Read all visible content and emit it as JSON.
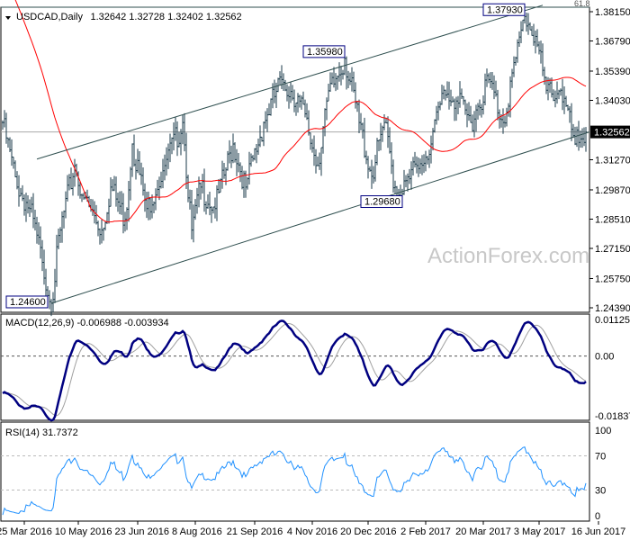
{
  "chart_data": {
    "type": "ohlc",
    "title": "USDCAD,Daily",
    "ohlc_last": [
      "1.32642",
      "1.32728",
      "1.32402",
      "1.32562"
    ],
    "last_price": "1.32562",
    "price_ticks": [
      "1.38150",
      "1.36790",
      "1.35390",
      "1.34030",
      "1.32562",
      "1.31270",
      "1.29870",
      "1.28510",
      "1.27150",
      "1.25750",
      "1.24390"
    ],
    "price_range": [
      1.2439,
      1.3815
    ],
    "date_labels": [
      [
        "25 Mar 2016",
        12
      ],
      [
        "10 May 2016",
        42
      ],
      [
        "23 Jun 2016",
        75
      ],
      [
        "8 Aug 2016",
        107
      ],
      [
        "21 Sep 2016",
        140
      ],
      [
        "4 Nov 2016",
        172
      ],
      [
        "20 Dec 2016",
        203
      ],
      [
        "2 Feb 2017",
        235
      ],
      [
        "20 Mar 2017",
        267
      ],
      [
        "3 May 2017",
        298
      ],
      [
        "16 Jun 2017",
        331
      ]
    ],
    "close_keyframes": [
      [
        0,
        1.33
      ],
      [
        8,
        1.3
      ],
      [
        15,
        1.29
      ],
      [
        22,
        1.265
      ],
      [
        27,
        1.246
      ],
      [
        32,
        1.28
      ],
      [
        40,
        1.31
      ],
      [
        45,
        1.295
      ],
      [
        55,
        1.28
      ],
      [
        60,
        1.3
      ],
      [
        68,
        1.285
      ],
      [
        72,
        1.32
      ],
      [
        80,
        1.29
      ],
      [
        90,
        1.31
      ],
      [
        100,
        1.33
      ],
      [
        105,
        1.28
      ],
      [
        110,
        1.3
      ],
      [
        118,
        1.29
      ],
      [
        128,
        1.32
      ],
      [
        135,
        1.3
      ],
      [
        145,
        1.33
      ],
      [
        155,
        1.35
      ],
      [
        165,
        1.34
      ],
      [
        175,
        1.31
      ],
      [
        180,
        1.34
      ],
      [
        190,
        1.3598
      ],
      [
        198,
        1.33
      ],
      [
        205,
        1.305
      ],
      [
        212,
        1.33
      ],
      [
        218,
        1.3
      ],
      [
        222,
        1.2968
      ],
      [
        230,
        1.31
      ],
      [
        238,
        1.32
      ],
      [
        245,
        1.345
      ],
      [
        252,
        1.34
      ],
      [
        260,
        1.33
      ],
      [
        270,
        1.35
      ],
      [
        278,
        1.33
      ],
      [
        285,
        1.36
      ],
      [
        290,
        1.3793
      ],
      [
        296,
        1.37
      ],
      [
        302,
        1.345
      ],
      [
        310,
        1.345
      ],
      [
        318,
        1.32
      ],
      [
        324,
        1.3256
      ]
    ],
    "annotations": [
      {
        "text": "1.24600",
        "bar": 27,
        "price": 1.246
      },
      {
        "text": "1.35980",
        "bar": 190,
        "price": 1.3598
      },
      {
        "text": "1.29680",
        "bar": 222,
        "price": 1.2968
      },
      {
        "text": "1.37930",
        "bar": 290,
        "price": 1.3793
      }
    ],
    "channel_upper": [
      [
        19,
        1.313
      ],
      [
        300,
        1.3845
      ]
    ],
    "channel_lower": [
      [
        27,
        1.246
      ],
      [
        326,
        1.3256
      ]
    ],
    "fib_label": "61.8",
    "ma_period": 50,
    "macd": {
      "label": "MACD(12,26,9) -0.006988 -0.003934",
      "ticks": [
        "0.011252",
        "0.00",
        "-0.01837"
      ],
      "range": [
        -0.01837,
        0.011252
      ]
    },
    "rsi": {
      "label": "RSI(14) 31.7372",
      "ticks": [
        "100",
        "70",
        "30",
        "0"
      ],
      "levels": [
        70,
        30
      ]
    },
    "watermark": "ActionForex.com",
    "colors": {
      "bars": "#1a3a4a",
      "ma": "#ff0000",
      "macd": "#000080",
      "signal": "#a0a0a0",
      "rsi": "#1e90ff",
      "label_box": "#000080"
    }
  }
}
